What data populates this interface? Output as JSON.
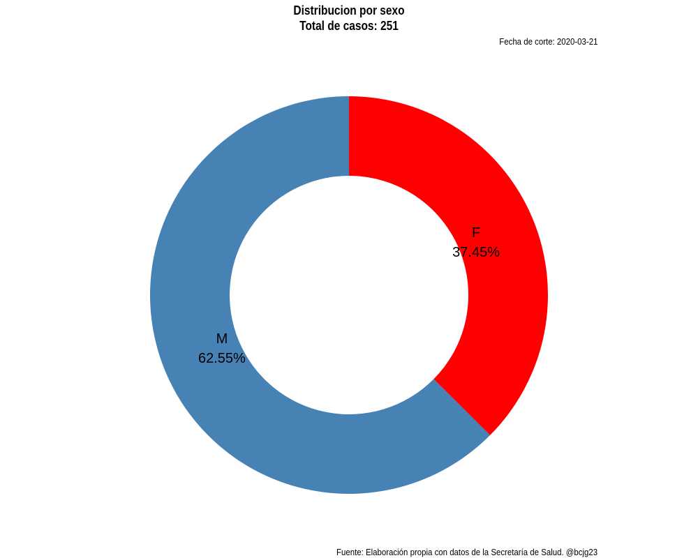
{
  "chart_data": {
    "type": "pie",
    "variant": "donut",
    "title": "Distribucion por sexo",
    "title_line2": "Total de casos: 251",
    "subtitle": "Fecha de corte: 2020-03-21",
    "caption": "Fuente: Elaboración propia con datos de la Secretaría de Salud. @bcjg23",
    "categories": [
      "F",
      "M"
    ],
    "values": [
      37.45,
      62.55
    ],
    "labels": [
      "37.45%",
      "62.55%"
    ],
    "colors": [
      "#ff0000",
      "#4682b4"
    ],
    "legend": "none"
  }
}
